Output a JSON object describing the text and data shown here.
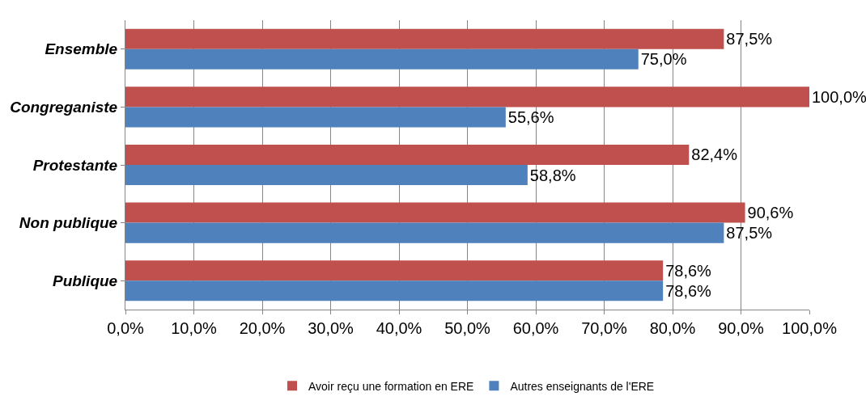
{
  "chart_data": {
    "type": "bar",
    "orientation": "horizontal",
    "categories": [
      "Ensemble",
      "Congreganiste",
      "Protestante",
      "Non publique",
      "Publique"
    ],
    "series": [
      {
        "name": "Avoir reçu une formation en ERE",
        "color": "#c0504d",
        "values": [
          87.5,
          100,
          82.4,
          90.6,
          78.6
        ],
        "value_labels": [
          "87,5%",
          "100,0%",
          "82,4%",
          "90,6%",
          "78,6%"
        ]
      },
      {
        "name": "Autres enseignants de l'ERE",
        "color": "#4f81bd",
        "values": [
          75.0,
          55.6,
          58.8,
          87.5,
          78.6
        ],
        "value_labels": [
          "75,0%",
          "55,6%",
          "58,8%",
          "87,5%",
          "78,6%"
        ]
      }
    ],
    "xlim": [
      0,
      100
    ],
    "xticks": [
      {
        "value": 0,
        "label": "0,0%"
      },
      {
        "value": 10,
        "label": "10,0%"
      },
      {
        "value": 20,
        "label": "20,0%"
      },
      {
        "value": 30,
        "label": "30,0%"
      },
      {
        "value": 40,
        "label": "40,0%"
      },
      {
        "value": 50,
        "label": "50,0%"
      },
      {
        "value": 60,
        "label": "60,0%"
      },
      {
        "value": 70,
        "label": "70,0%"
      },
      {
        "value": 80,
        "label": "80,0%"
      },
      {
        "value": 90,
        "label": "90,0%"
      },
      {
        "value": 100,
        "label": "100,0%"
      }
    ],
    "grid": "x",
    "legend": "bottom"
  }
}
